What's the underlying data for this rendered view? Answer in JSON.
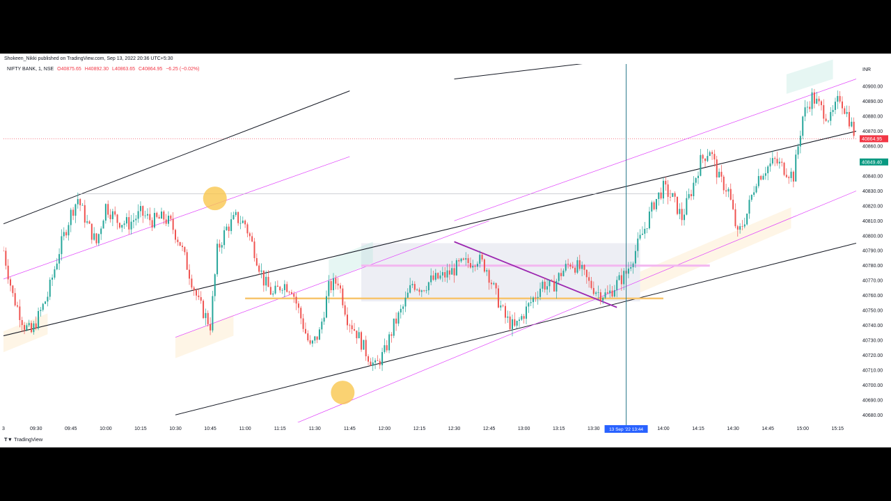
{
  "header": {
    "published_by": "Shokeen_Nikki published on TradingView.com, Sep 13, 2022 20:36 UTC+5:30",
    "symbol": "NIFTY BANK, 1, NSE",
    "open": "O40875.65",
    "high": "H40892.30",
    "low": "L40863.65",
    "close": "C40864.95",
    "change": "−6.25 (−0.02%)"
  },
  "footer": {
    "brand": "TradingView"
  },
  "colors": {
    "up": "#26a69a",
    "down": "#ef5350",
    "channel_line": "#131722",
    "channel_mid": "#e040fb",
    "support": "#f7c46c",
    "resistance_pink": "#f3b6f0",
    "crosshair": "#2a7a8a",
    "price_marker": "#f23645",
    "time_marker": "#2962ff"
  },
  "chart_data": {
    "type": "candlestick",
    "symbol": "NIFTY BANK",
    "interval": "1",
    "exchange": "NSE",
    "currency_label": "INR",
    "ylim": [
      40675,
      40915
    ],
    "y_ticks": [
      "40900.00",
      "40890.00",
      "40880.00",
      "40870.00",
      "40860.00",
      "40850.00",
      "40840.00",
      "40830.00",
      "40820.00",
      "40810.00",
      "40800.00",
      "40790.00",
      "40780.00",
      "40770.00",
      "40760.00",
      "40750.00",
      "40740.00",
      "40730.00",
      "40720.00",
      "40710.00",
      "40700.00",
      "40690.00",
      "40680.00"
    ],
    "x_ticks": [
      "3",
      "09:30",
      "09:45",
      "10:00",
      "10:15",
      "10:30",
      "10:45",
      "11:00",
      "11:15",
      "11:30",
      "11:45",
      "12:00",
      "12:15",
      "12:30",
      "12:45",
      "13:00",
      "13:15",
      "13:30",
      "14:00",
      "14:15",
      "14:30",
      "14:45",
      "15:00",
      "15:15"
    ],
    "x_time_range": [
      "09:16",
      "15:23"
    ],
    "close_path": [
      [
        "09:16",
        40790
      ],
      [
        "09:20",
        40760
      ],
      [
        "09:25",
        40740
      ],
      [
        "09:28",
        40735
      ],
      [
        "09:35",
        40760
      ],
      [
        "09:40",
        40790
      ],
      [
        "09:45",
        40815
      ],
      [
        "09:48",
        40825
      ],
      [
        "09:52",
        40808
      ],
      [
        "09:56",
        40795
      ],
      [
        "10:00",
        40820
      ],
      [
        "10:05",
        40810
      ],
      [
        "10:10",
        40808
      ],
      [
        "10:15",
        40815
      ],
      [
        "10:20",
        40810
      ],
      [
        "10:25",
        40812
      ],
      [
        "10:28",
        40808
      ],
      [
        "10:32",
        40795
      ],
      [
        "10:36",
        40775
      ],
      [
        "10:40",
        40755
      ],
      [
        "10:45",
        40740
      ],
      [
        "10:48",
        40790
      ],
      [
        "10:52",
        40805
      ],
      [
        "10:56",
        40812
      ],
      [
        "11:00",
        40808
      ],
      [
        "11:04",
        40790
      ],
      [
        "11:08",
        40770
      ],
      [
        "11:12",
        40760
      ],
      [
        "11:16",
        40768
      ],
      [
        "11:20",
        40765
      ],
      [
        "11:24",
        40745
      ],
      [
        "11:28",
        40725
      ],
      [
        "11:32",
        40735
      ],
      [
        "11:36",
        40765
      ],
      [
        "11:40",
        40770
      ],
      [
        "11:44",
        40745
      ],
      [
        "11:48",
        40735
      ],
      [
        "11:52",
        40722
      ],
      [
        "11:56",
        40712
      ],
      [
        "12:00",
        40722
      ],
      [
        "12:04",
        40740
      ],
      [
        "12:08",
        40752
      ],
      [
        "12:12",
        40768
      ],
      [
        "12:16",
        40765
      ],
      [
        "12:20",
        40770
      ],
      [
        "12:24",
        40772
      ],
      [
        "12:28",
        40775
      ],
      [
        "12:32",
        40780
      ],
      [
        "12:36",
        40782
      ],
      [
        "12:40",
        40785
      ],
      [
        "12:44",
        40778
      ],
      [
        "12:48",
        40760
      ],
      [
        "12:52",
        40745
      ],
      [
        "12:56",
        40738
      ],
      [
        "13:00",
        40748
      ],
      [
        "13:04",
        40758
      ],
      [
        "13:08",
        40768
      ],
      [
        "13:12",
        40765
      ],
      [
        "13:16",
        40775
      ],
      [
        "13:20",
        40782
      ],
      [
        "13:24",
        40778
      ],
      [
        "13:28",
        40768
      ],
      [
        "13:32",
        40762
      ],
      [
        "13:36",
        40760
      ],
      [
        "13:40",
        40768
      ],
      [
        "13:44",
        40775
      ],
      [
        "13:48",
        40790
      ],
      [
        "13:52",
        40805
      ],
      [
        "13:56",
        40822
      ],
      [
        "14:00",
        40832
      ],
      [
        "14:04",
        40825
      ],
      [
        "14:08",
        40812
      ],
      [
        "14:12",
        40830
      ],
      [
        "14:16",
        40850
      ],
      [
        "14:20",
        40858
      ],
      [
        "14:24",
        40838
      ],
      [
        "14:28",
        40830
      ],
      [
        "14:32",
        40800
      ],
      [
        "14:36",
        40815
      ],
      [
        "14:40",
        40838
      ],
      [
        "14:44",
        40845
      ],
      [
        "14:48",
        40850
      ],
      [
        "14:52",
        40845
      ],
      [
        "14:56",
        40840
      ],
      [
        "15:00",
        40880
      ],
      [
        "15:04",
        40893
      ],
      [
        "15:08",
        40885
      ],
      [
        "15:12",
        40878
      ],
      [
        "15:16",
        40893
      ],
      [
        "15:20",
        40878
      ],
      [
        "15:23",
        40864.95
      ]
    ],
    "last_price_label": "40864.95",
    "second_price_label": "40849.40",
    "crosshair_time_label": "13 Sep '22   13:44",
    "crosshair_time": "13:44",
    "drawings": {
      "upper_channel_line": [
        [
          "09:16",
          40808
        ],
        [
          "11:45",
          40897
        ]
      ],
      "upper_channel_mid": [
        [
          "09:16",
          40771
        ],
        [
          "11:45",
          40853
        ]
      ],
      "lower_channel_mid": [
        [
          "10:30",
          40732
        ],
        [
          "12:45",
          40810
        ]
      ],
      "main_upper": [
        [
          "12:30",
          40905
        ],
        [
          "14:45",
          40930
        ]
      ],
      "main_mid": [
        [
          "09:16",
          40733
        ],
        [
          "15:23",
          40870
        ]
      ],
      "main_lower": [
        [
          "10:30",
          40680
        ],
        [
          "15:23",
          40795
        ]
      ],
      "pink_upper": [
        [
          "12:30",
          40810
        ],
        [
          "15:23",
          40905
        ]
      ],
      "pink_lower": [
        [
          "11:15",
          40670
        ],
        [
          "15:23",
          40830
        ]
      ],
      "support_hline": [
        [
          "11:00",
          40758
        ],
        [
          "14:00",
          40758
        ]
      ],
      "resistance_hline": [
        [
          "11:50",
          40780
        ],
        [
          "14:20",
          40780
        ]
      ],
      "trendline_purple": [
        [
          "12:30",
          40796
        ],
        [
          "13:40",
          40752
        ]
      ],
      "zone_rect": [
        [
          "11:50",
          40795
        ],
        [
          "13:50",
          40756
        ]
      ],
      "highlight_circles": [
        [
          "10:47",
          40825
        ],
        [
          "11:42",
          40695
        ]
      ]
    }
  }
}
